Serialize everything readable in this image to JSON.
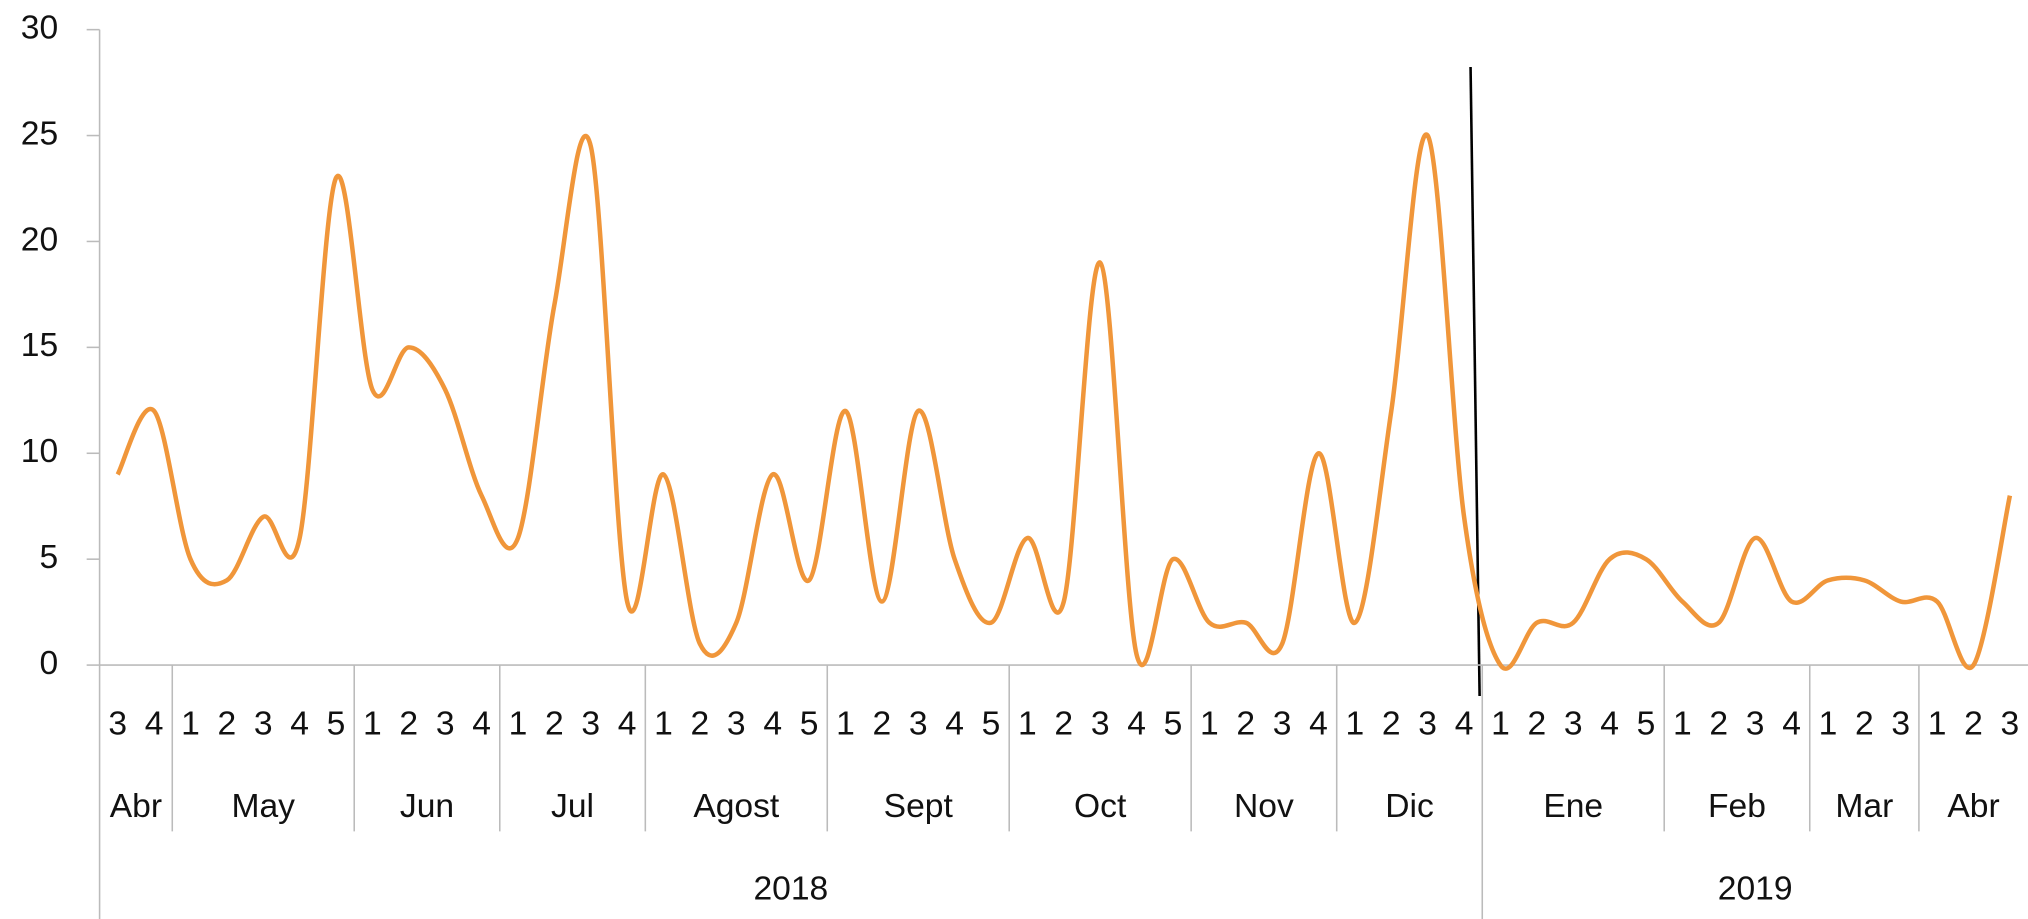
{
  "chart_data": {
    "type": "line",
    "color": "#f0963a",
    "ylim": [
      0,
      30
    ],
    "yticks": [
      0,
      5,
      10,
      15,
      20,
      25,
      30
    ],
    "years": [
      {
        "label": "2018",
        "months": [
          {
            "label": "Abr",
            "weeks": [
              "3",
              "4"
            ]
          },
          {
            "label": "May",
            "weeks": [
              "1",
              "2",
              "3",
              "4",
              "5"
            ]
          },
          {
            "label": "Jun",
            "weeks": [
              "1",
              "2",
              "3",
              "4"
            ]
          },
          {
            "label": "Jul",
            "weeks": [
              "1",
              "2",
              "3",
              "4"
            ]
          },
          {
            "label": "Agost",
            "weeks": [
              "1",
              "2",
              "3",
              "4",
              "5"
            ]
          },
          {
            "label": "Sept",
            "weeks": [
              "1",
              "2",
              "3",
              "4",
              "5"
            ]
          },
          {
            "label": "Oct",
            "weeks": [
              "1",
              "2",
              "3",
              "4",
              "5"
            ]
          },
          {
            "label": "Nov",
            "weeks": [
              "1",
              "2",
              "3",
              "4"
            ]
          },
          {
            "label": "Dic",
            "weeks": [
              "1",
              "2",
              "3",
              "4"
            ]
          }
        ]
      },
      {
        "label": "2019",
        "months": [
          {
            "label": "Ene",
            "weeks": [
              "1",
              "2",
              "3",
              "4",
              "5"
            ]
          },
          {
            "label": "Feb",
            "weeks": [
              "1",
              "2",
              "3",
              "4"
            ]
          },
          {
            "label": "Mar",
            "weeks": [
              "1",
              "2",
              "3"
            ]
          },
          {
            "label": "Abr",
            "weeks": [
              "1",
              "2",
              "3"
            ]
          }
        ]
      }
    ],
    "values": [
      9,
      12,
      5,
      4,
      7,
      6,
      23,
      13,
      15,
      13,
      8,
      6,
      17,
      24.5,
      3,
      9,
      1,
      2,
      9,
      4,
      12,
      3,
      12,
      5,
      2,
      6,
      3,
      19,
      0.5,
      5,
      2,
      2,
      1,
      10,
      2,
      12,
      25,
      7,
      0,
      2,
      2,
      5,
      5,
      3,
      2,
      6,
      3,
      4,
      4,
      3,
      3,
      0,
      8
    ]
  }
}
